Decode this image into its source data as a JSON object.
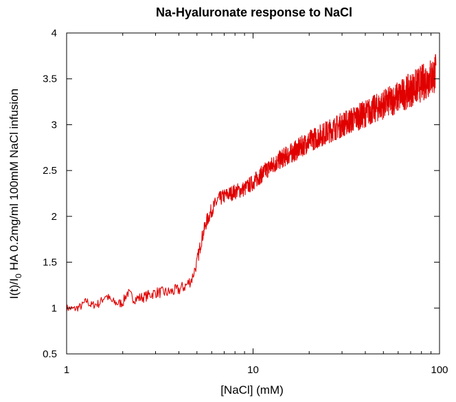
{
  "chart_data": {
    "type": "line",
    "title": "Na-Hyaluronate response to NaCl",
    "xlabel": "[NaCl] (mM)",
    "ylabel_parts": [
      "I(t)/I",
      "0",
      " HA 0.2mg/ml 100mM NaCl infusion"
    ],
    "x_scale": "log",
    "xlim": [
      1,
      100
    ],
    "ylim": [
      0.5,
      4
    ],
    "x_ticks": [
      1,
      10,
      100
    ],
    "x_tick_labels": [
      "1",
      "10",
      "100"
    ],
    "y_ticks": [
      0.5,
      1,
      1.5,
      2,
      2.5,
      3,
      3.5,
      4
    ],
    "y_tick_labels": [
      "0.5",
      "1",
      "1.5",
      "2",
      "2.5",
      "3",
      "3.5",
      "4"
    ],
    "grid": false,
    "series": [
      {
        "color": "#e00000",
        "points": [
          [
            1.0,
            1.0
          ],
          [
            1.1,
            0.99
          ],
          [
            1.2,
            1.02
          ],
          [
            1.28,
            1.08
          ],
          [
            1.35,
            1.03
          ],
          [
            1.5,
            1.05
          ],
          [
            1.62,
            1.14
          ],
          [
            1.75,
            1.07
          ],
          [
            1.9,
            1.05
          ],
          [
            2.0,
            1.06
          ],
          [
            2.12,
            1.17
          ],
          [
            2.3,
            1.1
          ],
          [
            2.6,
            1.12
          ],
          [
            3.0,
            1.17
          ],
          [
            3.5,
            1.17
          ],
          [
            4.0,
            1.2
          ],
          [
            4.4,
            1.25
          ],
          [
            4.7,
            1.32
          ],
          [
            5.0,
            1.5
          ],
          [
            5.3,
            1.75
          ],
          [
            5.6,
            1.93
          ],
          [
            6.0,
            2.07
          ],
          [
            6.5,
            2.18
          ],
          [
            7.0,
            2.22
          ],
          [
            8.0,
            2.27
          ],
          [
            9.0,
            2.3
          ],
          [
            10.0,
            2.37
          ],
          [
            11.0,
            2.45
          ],
          [
            12.0,
            2.52
          ],
          [
            14.0,
            2.62
          ],
          [
            17.0,
            2.72
          ],
          [
            20.0,
            2.82
          ],
          [
            25.0,
            2.92
          ],
          [
            30.0,
            3.0
          ],
          [
            40.0,
            3.12
          ],
          [
            50.0,
            3.22
          ],
          [
            60.0,
            3.3
          ],
          [
            70.0,
            3.38
          ],
          [
            80.0,
            3.45
          ],
          [
            90.0,
            3.52
          ],
          [
            96.0,
            3.57
          ]
        ],
        "noise_band": [
          [
            1.0,
            0.04
          ],
          [
            4.5,
            0.07
          ],
          [
            6.0,
            0.08
          ],
          [
            10.0,
            0.09
          ],
          [
            20.0,
            0.12
          ],
          [
            50.0,
            0.16
          ],
          [
            96.0,
            0.22
          ]
        ]
      }
    ]
  }
}
